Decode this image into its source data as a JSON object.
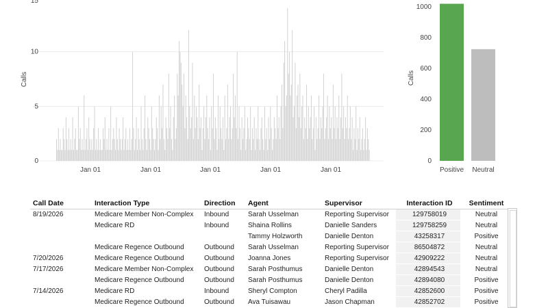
{
  "colors": {
    "bar_gray": "#d3d3d3",
    "positive": "#58a64f",
    "neutral": "#bdbdbd"
  },
  "chart_data": [
    {
      "type": "bar",
      "ylabel": "Calls",
      "xlabel": "",
      "ylim": [
        0,
        15
      ],
      "yticks": [
        0,
        5,
        10,
        15
      ],
      "x_tick_labels": [
        "Jan 01",
        "Jan 01",
        "Jan 01",
        "Jan 01",
        "Jan 01"
      ],
      "grid": true,
      "values": [
        2,
        1,
        3,
        1,
        2,
        1,
        1,
        3,
        2,
        1,
        4,
        2,
        1,
        3,
        1,
        2,
        1,
        4,
        1,
        2,
        3,
        1,
        1,
        5,
        2,
        3,
        1,
        2,
        1,
        6,
        1,
        2,
        3,
        1,
        4,
        2,
        1,
        2,
        1,
        3,
        5,
        1,
        2,
        1,
        3,
        1,
        2,
        1,
        1,
        3,
        2,
        4,
        1,
        2,
        1,
        3,
        1,
        5,
        1,
        2,
        3,
        2,
        1,
        4,
        2,
        1,
        3,
        2,
        1,
        2,
        4,
        1,
        2,
        3,
        1,
        2,
        1,
        3,
        1,
        2,
        10,
        3,
        1,
        2,
        4,
        1,
        3,
        2,
        1,
        5,
        2,
        1,
        3,
        6,
        2,
        1,
        4,
        3,
        2,
        1,
        5,
        3,
        2,
        1,
        2,
        4,
        3,
        1,
        6,
        2,
        5,
        3,
        7,
        2,
        1,
        4,
        3,
        2,
        8,
        3,
        5,
        2,
        1,
        4,
        6,
        2,
        3,
        8,
        6,
        11,
        10,
        9,
        7,
        5,
        8,
        3,
        6,
        4,
        2,
        12,
        5,
        3,
        4,
        9,
        2,
        6,
        3,
        5,
        4,
        2,
        7,
        3,
        4,
        1,
        3,
        5,
        2,
        4,
        6,
        3,
        2,
        4,
        1,
        5,
        3,
        8,
        2,
        4,
        3,
        1,
        6,
        2,
        5,
        3,
        2,
        4,
        1,
        6,
        2,
        3,
        7,
        2,
        4,
        5,
        2,
        3,
        8,
        4,
        6,
        3,
        10,
        2,
        5,
        3,
        1,
        4,
        2,
        3,
        5,
        1,
        2,
        4,
        3,
        2,
        5,
        1,
        3,
        2,
        4,
        1,
        3,
        2,
        5,
        2,
        1,
        3,
        4,
        2,
        1,
        5,
        2,
        3,
        1,
        4,
        2,
        5,
        3,
        1,
        2,
        4,
        3,
        2,
        6,
        3,
        4,
        2,
        5,
        7,
        3,
        9,
        11,
        5,
        6,
        14,
        8,
        10,
        6,
        7,
        12,
        4,
        5,
        9,
        3,
        6,
        7,
        4,
        8,
        3,
        5,
        6,
        2,
        4,
        3,
        7,
        2,
        5,
        3,
        4,
        6,
        2,
        3,
        5,
        1,
        4,
        2,
        3,
        6,
        2,
        4,
        3,
        5,
        8,
        2,
        3,
        4,
        6,
        2,
        5,
        3,
        4,
        2,
        7,
        3,
        5,
        2,
        4,
        3,
        6,
        2,
        4,
        8,
        3,
        5,
        2,
        4,
        3,
        6,
        2,
        3,
        5,
        2,
        4,
        1,
        3,
        2,
        5,
        1,
        3,
        2,
        4,
        1,
        2,
        3,
        1,
        2,
        4,
        1,
        3,
        2,
        1
      ]
    },
    {
      "type": "bar",
      "ylabel": "Calls",
      "xlabel": "",
      "ylim": [
        0,
        1000
      ],
      "yticks": [
        0,
        200,
        400,
        600,
        800,
        1000
      ],
      "categories": [
        "Positive",
        "Neutral"
      ],
      "values": [
        1020,
        725
      ]
    }
  ],
  "table": {
    "headers": [
      "Call Date",
      "Interaction Type",
      "Direction",
      "Agent",
      "Supervisor",
      "Interaction ID",
      "Sentiment"
    ],
    "rows": [
      {
        "date": "8/19/2026",
        "type": "Medicare Member Non-Complex",
        "direction": "Inbound",
        "agent": "Sarah Usselman",
        "supervisor": "Reporting Supervisor",
        "id": "129758019",
        "sentiment": "Neutral"
      },
      {
        "date": "",
        "type": "Medicare RD",
        "direction": "Inbound",
        "agent": "Shaina Rollins",
        "supervisor": "Danielle Sanders",
        "id": "129758259",
        "sentiment": "Neutral"
      },
      {
        "date": "",
        "type": "",
        "direction": "",
        "agent": "Tammy Holzworth",
        "supervisor": "Danielle Denton",
        "id": "43258317",
        "sentiment": "Positive"
      },
      {
        "date": "",
        "type": "Medicare Regence Outbound",
        "direction": "Outbound",
        "agent": "Sarah Usselman",
        "supervisor": "Reporting Supervisor",
        "id": "86504872",
        "sentiment": "Neutral"
      },
      {
        "date": "7/20/2026",
        "type": "Medicare Regence Outbound",
        "direction": "Outbound",
        "agent": "Joanna Jones",
        "supervisor": "Reporting Supervisor",
        "id": "42909222",
        "sentiment": "Neutral"
      },
      {
        "date": "7/17/2026",
        "type": "Medicare Member Non-Complex",
        "direction": "Outbound",
        "agent": "Sarah Posthumus",
        "supervisor": "Danielle Denton",
        "id": "42894543",
        "sentiment": "Neutral"
      },
      {
        "date": "",
        "type": "Medicare Regence Outbound",
        "direction": "Outbound",
        "agent": "Sarah Posthumus",
        "supervisor": "Danielle Denton",
        "id": "42894080",
        "sentiment": "Positive"
      },
      {
        "date": "7/14/2026",
        "type": "Medicare RD",
        "direction": "Inbound",
        "agent": "Sheryl Compton",
        "supervisor": "Cheryl Padilla",
        "id": "42852600",
        "sentiment": "Positive"
      },
      {
        "date": "",
        "type": "Medicare Regence Outbound",
        "direction": "Outbound",
        "agent": "Ava Tuisawau",
        "supervisor": "Jason Chapman",
        "id": "42852702",
        "sentiment": "Positive"
      }
    ]
  }
}
